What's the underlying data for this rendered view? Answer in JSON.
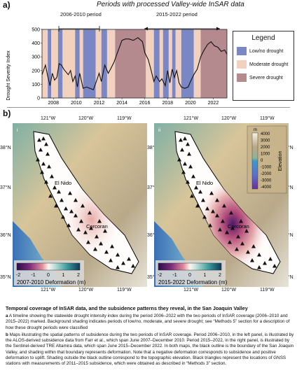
{
  "panel_a": {
    "label": "a)",
    "title": "Periods with processed Valley-wide InSAR data",
    "period1": "2006-2010 period",
    "period2": "2015-2022 period",
    "legend": {
      "title": "Legend",
      "items": [
        {
          "label": "Low/no drought",
          "color": "#7b87c4"
        },
        {
          "label": "Moderate drought",
          "color": "#f2d1bf"
        },
        {
          "label": "Severe drought",
          "color": "#b48a8f"
        }
      ]
    }
  },
  "chart_data": {
    "type": "line",
    "title": "Periods with processed Valley-wide InSAR data",
    "ylabel": "Drought Severity Index",
    "xlabel": "",
    "xlim": [
      2007,
      2023.2
    ],
    "ylim": [
      0,
      500
    ],
    "x_ticks": [
      2008,
      2010,
      2012,
      2014,
      2016,
      2018,
      2020,
      2022
    ],
    "y_ticks": [
      0,
      100,
      200,
      300,
      400,
      500
    ],
    "background_bands": [
      {
        "start": 2007.0,
        "end": 2007.5,
        "class": "moderate"
      },
      {
        "start": 2007.5,
        "end": 2007.8,
        "class": "low"
      },
      {
        "start": 2007.8,
        "end": 2008.4,
        "class": "moderate"
      },
      {
        "start": 2008.4,
        "end": 2008.8,
        "class": "low"
      },
      {
        "start": 2008.8,
        "end": 2009.9,
        "class": "moderate"
      },
      {
        "start": 2009.9,
        "end": 2010.3,
        "class": "low"
      },
      {
        "start": 2010.3,
        "end": 2010.6,
        "class": "moderate"
      },
      {
        "start": 2010.6,
        "end": 2011.7,
        "class": "low"
      },
      {
        "start": 2011.7,
        "end": 2012.2,
        "class": "moderate"
      },
      {
        "start": 2012.2,
        "end": 2012.7,
        "class": "low"
      },
      {
        "start": 2012.7,
        "end": 2013.4,
        "class": "moderate"
      },
      {
        "start": 2013.4,
        "end": 2016.1,
        "class": "severe"
      },
      {
        "start": 2016.1,
        "end": 2016.8,
        "class": "moderate"
      },
      {
        "start": 2016.8,
        "end": 2017.3,
        "class": "low"
      },
      {
        "start": 2017.3,
        "end": 2017.6,
        "class": "moderate"
      },
      {
        "start": 2017.6,
        "end": 2018.1,
        "class": "low"
      },
      {
        "start": 2018.1,
        "end": 2018.4,
        "class": "moderate"
      },
      {
        "start": 2018.4,
        "end": 2018.7,
        "class": "low"
      },
      {
        "start": 2018.7,
        "end": 2019.2,
        "class": "moderate"
      },
      {
        "start": 2019.2,
        "end": 2020.3,
        "class": "low"
      },
      {
        "start": 2020.3,
        "end": 2020.9,
        "class": "moderate"
      },
      {
        "start": 2020.9,
        "end": 2023.2,
        "class": "severe"
      }
    ],
    "series": [
      {
        "x": [
          2007.0,
          2007.3,
          2007.5,
          2007.7,
          2007.9,
          2008.1,
          2008.3,
          2008.5,
          2008.7,
          2008.9,
          2009.1,
          2009.3,
          2009.5,
          2009.7,
          2009.9,
          2010.1,
          2010.3,
          2010.6,
          2010.9,
          2011.2,
          2011.5,
          2011.8,
          2012.0,
          2012.2,
          2012.5,
          2012.8,
          2013.0,
          2013.3,
          2013.6,
          2014.0,
          2014.3,
          2014.6,
          2015.0,
          2015.4,
          2015.8,
          2016.0,
          2016.3,
          2016.5,
          2016.8,
          2017.0,
          2017.3,
          2017.5,
          2017.8,
          2018.0,
          2018.2,
          2018.4,
          2018.6,
          2018.8,
          2019.0,
          2019.2,
          2019.5,
          2019.8,
          2020.0,
          2020.3,
          2020.6,
          2020.9,
          2021.2,
          2021.5,
          2021.8,
          2022.1,
          2022.4,
          2022.7,
          2023.0,
          2023.2
        ],
        "values": [
          170,
          240,
          160,
          90,
          180,
          130,
          150,
          250,
          240,
          210,
          190,
          170,
          200,
          120,
          160,
          80,
          180,
          70,
          80,
          70,
          60,
          130,
          180,
          120,
          240,
          180,
          210,
          260,
          330,
          420,
          430,
          430,
          420,
          440,
          410,
          330,
          280,
          220,
          120,
          160,
          120,
          140,
          90,
          200,
          110,
          210,
          150,
          200,
          110,
          80,
          70,
          80,
          120,
          170,
          210,
          300,
          350,
          390,
          410,
          380,
          370,
          340,
          350,
          320
        ]
      }
    ]
  },
  "panel_b": {
    "label": "b)",
    "lon_labels": [
      "121°W",
      "120°W",
      "119°W"
    ],
    "lat_labels": [
      "38°N",
      "37°N",
      "36°N",
      "35°N"
    ],
    "left_map": {
      "corner_label": "i",
      "city1": "El Nido",
      "city2": "Corcoran",
      "colorbar_ticks": [
        "-2",
        "-1",
        "0",
        "1",
        "2"
      ],
      "colorbar_title": "2007-2010 Deformation (m)"
    },
    "right_map": {
      "corner_label": "ii",
      "city1": "El Nido",
      "city2": "Corcoran",
      "colorbar_ticks": [
        "-2",
        "-1",
        "0",
        "1",
        "2"
      ],
      "colorbar_title": "2015-2022 Deformation (m)",
      "elev_unit": "m",
      "elev_ticks": [
        "4000",
        "3000",
        "2000",
        "1000",
        "0",
        "-1000",
        "-2000",
        "-3000",
        "-4000"
      ],
      "elev_title": "Elevation"
    }
  },
  "caption": {
    "title": "Temporal coverage of InSAR data, and the subsidence patterns they reveal, in the San Joaquin Valley",
    "a_label": "a",
    "a_text": " A timeline showing the statewide drought intensity index during the period 2006–2022 with the two periods of InSAR coverage (2006–2010 and 2015–2022) marked. Background shading indicates periods of low/no, moderate, and severe drought; see “Methods 5” section for a description of how these drought periods were classified",
    "b_label": "b",
    "b_text": " Maps illustrating the spatial patterns of subsidence during the two periods of InSAR coverage. Period 2006–2010, in the left panel, is illustrated by the ALOS-derived subsidence data from Farr et al., which span June 2007–December 2010. Period 2015–2022, in the right panel, is illustrated by the Sentinel-derived TRE Altamira data, which span June 2015–December 2022. In both maps, the black outline is the boundary of the San Joaquin Valley, and shading within that boundary represents deformation. Note that a negative deformation corresponds to subsidence and positive deformation to uplift. Shading outside the black outline correspond to the topographic elevation. Black triangles represent the locations of GNSS stations with measurements of 2011–2015 subsidence, which were obtained as described in “Methods 3” section."
  }
}
